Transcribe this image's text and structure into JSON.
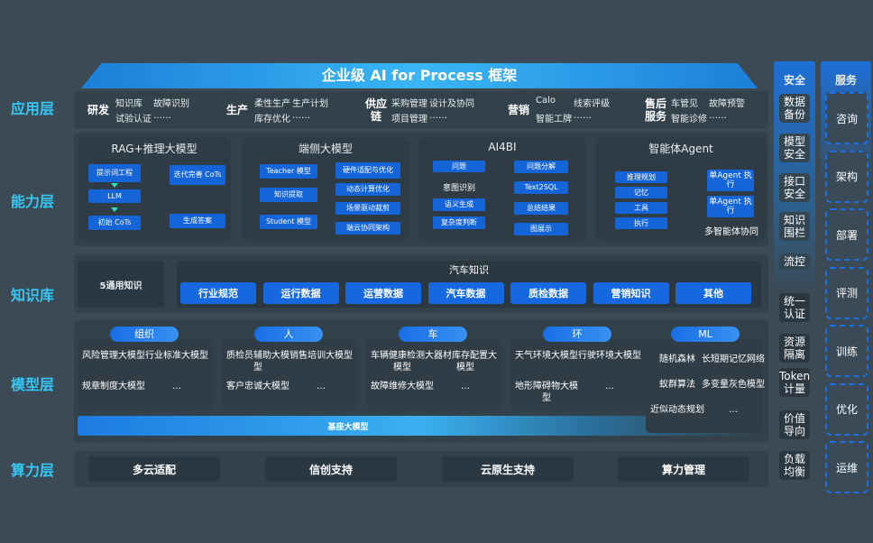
{
  "title": "企业级 AI for Process 框架",
  "layers": [
    "应用层",
    "能力层",
    "知识库",
    "模型层",
    "算力层"
  ],
  "app": [
    {
      "name": "研发",
      "items": [
        "知识库",
        "故障识别",
        "试验认证",
        "……"
      ]
    },
    {
      "name": "生产",
      "items": [
        "柔性生产",
        "生产计划",
        "库存优化",
        "……"
      ]
    },
    {
      "name": "供应链",
      "items": [
        "采购管理",
        "设计及协同",
        "项目管理",
        "……"
      ]
    },
    {
      "name": "营销",
      "items": [
        "Calo",
        "线索评级",
        "智能工牌",
        "……"
      ]
    },
    {
      "name": "售后服务",
      "items": [
        "车管见",
        "故障预警",
        "智能诊修",
        "……"
      ]
    }
  ],
  "capability": {
    "rag": {
      "title": "RAG+推理大模型",
      "steps": [
        "提示词工程",
        "LLM",
        "初始 CoTs",
        "迭代完善 CoTs",
        "生成答案"
      ]
    },
    "edge": {
      "title": "端侧大模型",
      "steps": [
        "Teacher 模型",
        "知识提取",
        "Student 模型"
      ],
      "side": [
        "硬件适配与优化",
        "动态计算优化",
        "场景驱动裁剪",
        "端云协同架构"
      ]
    },
    "ai4bi": {
      "title": "AI4BI",
      "left": [
        "问题",
        "意图识别",
        "语义生成",
        "复杂度判断"
      ],
      "right": [
        "问题分解",
        "Text2SQL",
        "总结结果",
        "图展示"
      ]
    },
    "agent": {
      "title": "智能体Agent",
      "items": [
        "推理规划",
        "记忆",
        "工具",
        "执行"
      ],
      "exec": [
        "单Agent 执行",
        "单Agent 执行"
      ],
      "footer": "多智能体协同"
    }
  },
  "knowledge": {
    "general": "5通用知识",
    "auto_title": "汽车知识",
    "items": [
      "行业规范",
      "运行数据",
      "运营数据",
      "汽车数据",
      "质检数据",
      "营销知识",
      "其他"
    ]
  },
  "models": [
    {
      "tag": "组织",
      "items": [
        "风险管理大模型",
        "行业标准大模型",
        "规章制度大模型",
        "…"
      ]
    },
    {
      "tag": "人",
      "items": [
        "质检员辅助大模型",
        "销售培训大模型",
        "客户忠诚大模型",
        "…"
      ]
    },
    {
      "tag": "车",
      "items": [
        "车辆健康检测大模型",
        "器材库存配置大模型",
        "故障维修大模型",
        "…"
      ]
    },
    {
      "tag": "环",
      "items": [
        "天气环境大模型",
        "行驶环境大模型",
        "地形障碍物大模型",
        "…"
      ]
    },
    {
      "tag": "ML",
      "items": [
        "随机森林",
        "长短期记忆网络",
        "蚁群算法",
        "多变量灰色模型",
        "近似动态规划",
        "…"
      ]
    }
  ],
  "base_model": "基座大模型",
  "compute": [
    "多云适配",
    "信创支持",
    "云原生支持",
    "算力管理"
  ],
  "security": {
    "title": "安全",
    "items": [
      "数据备份",
      "模型安全",
      "接口安全",
      "知识围栏",
      "流控",
      "统一认证",
      "资源隔离",
      "Token计量",
      "价值导向",
      "负载均衡"
    ]
  },
  "service": {
    "title": "服务",
    "items": [
      "咨询",
      "架构",
      "部署",
      "评测",
      "训练",
      "优化",
      "运维"
    ]
  },
  "colors": {
    "accent": "#35c8f5",
    "box": "#1565d8",
    "bg": "#3b4a55"
  }
}
